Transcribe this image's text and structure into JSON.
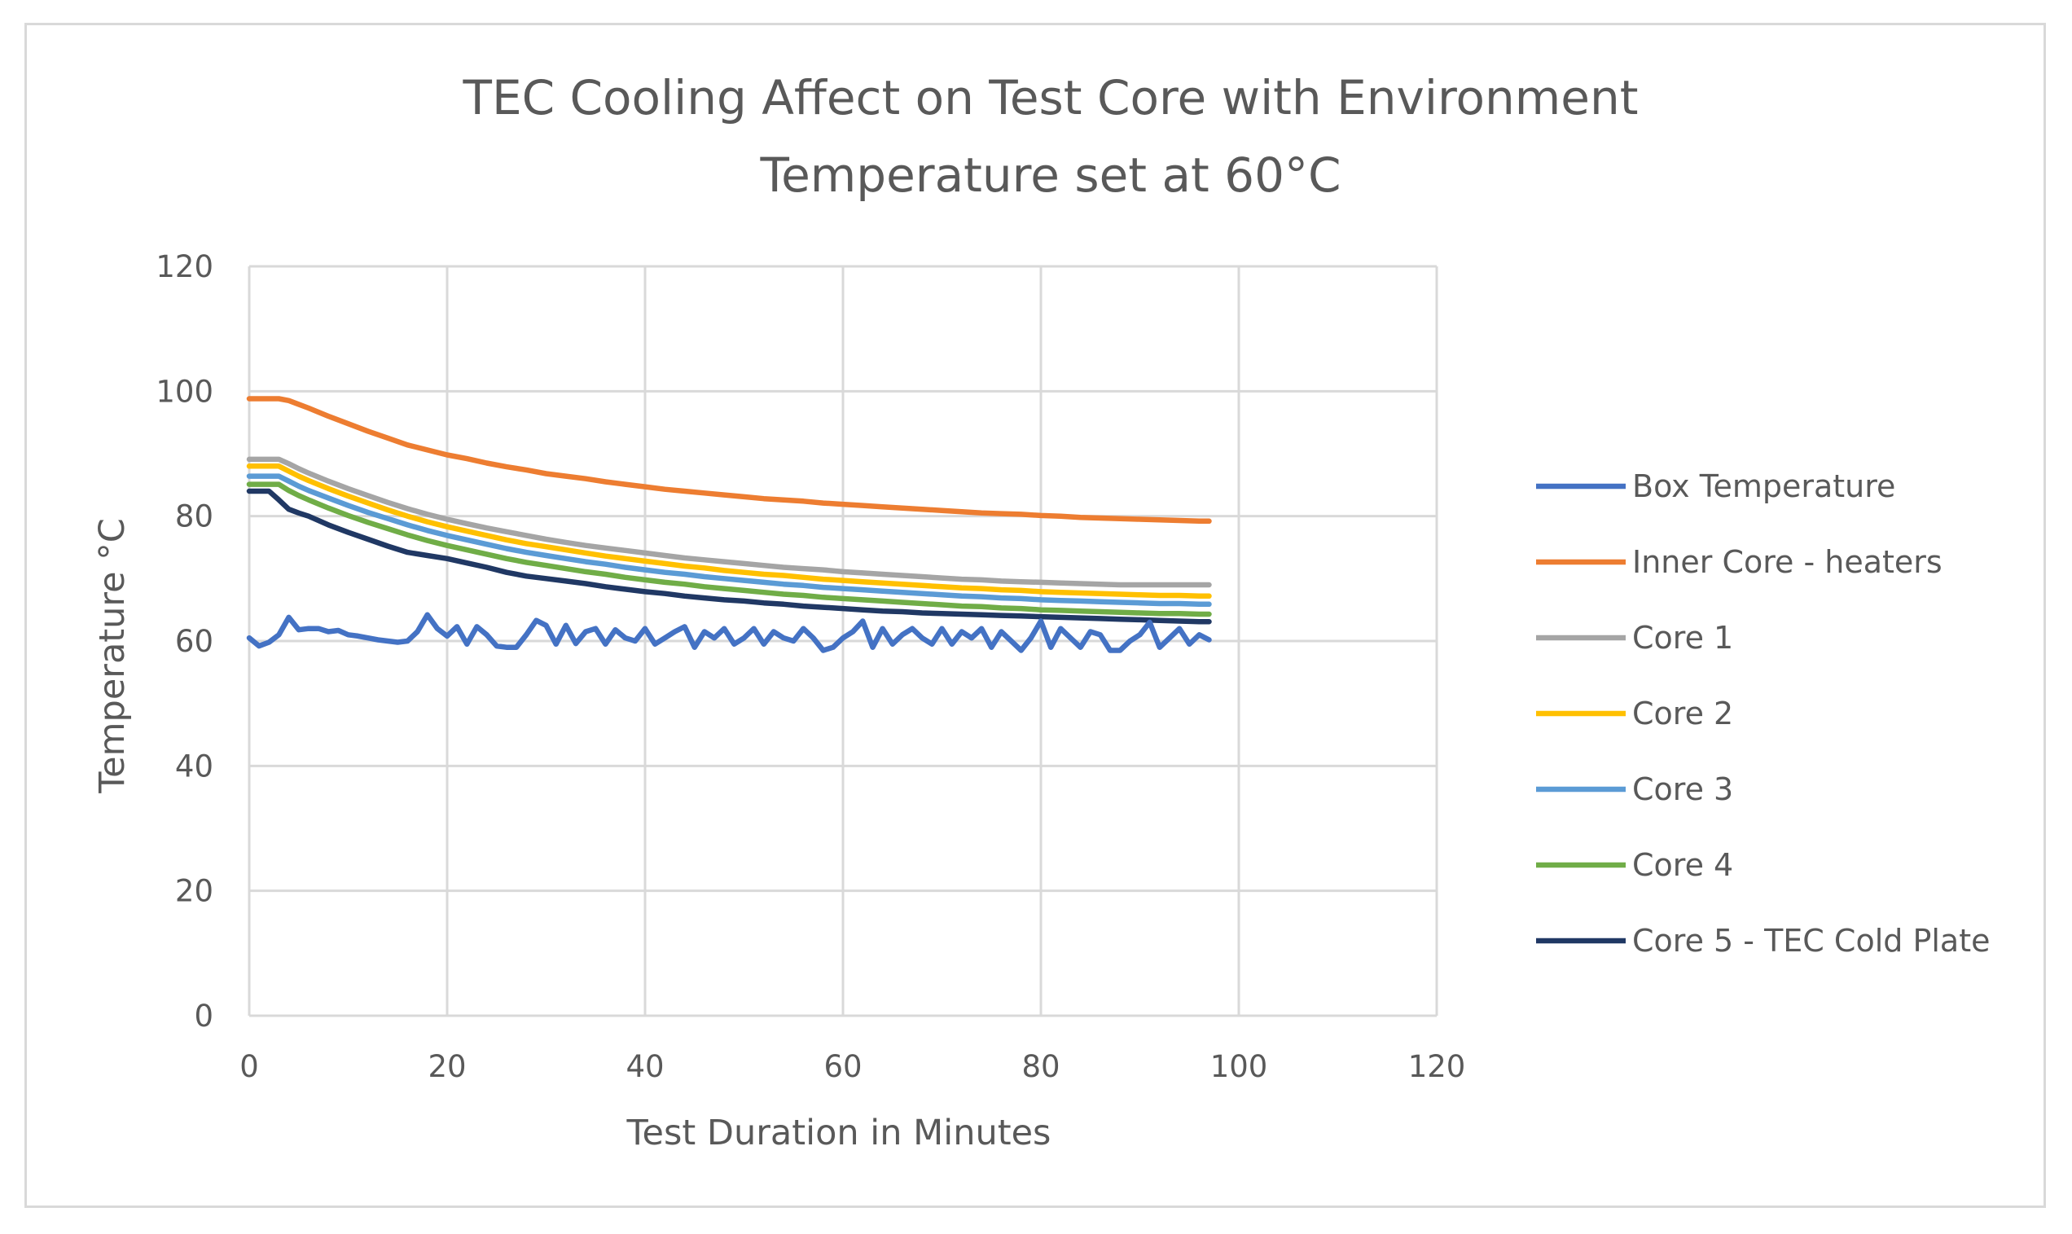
{
  "chart_data": {
    "type": "line",
    "title_lines": [
      "TEC Cooling Affect on Test Core with Environment",
      "Temperature set at 60°C"
    ],
    "xlabel": "Test Duration in Minutes",
    "ylabel": "Temperature °C",
    "xlim": [
      0,
      120
    ],
    "ylim": [
      0,
      120
    ],
    "xticks": [
      0,
      20,
      40,
      60,
      80,
      100,
      120
    ],
    "yticks": [
      0,
      20,
      40,
      60,
      80,
      100,
      120
    ],
    "grid": true,
    "legend_position": "right",
    "series": [
      {
        "name": "Box Temperature",
        "color": "#4472C4",
        "x": [
          0,
          1,
          2,
          3,
          4,
          5,
          6,
          7,
          8,
          9,
          10,
          11,
          12,
          13,
          14,
          15,
          16,
          17,
          18,
          19,
          20,
          21,
          22,
          23,
          24,
          25,
          26,
          27,
          28,
          29,
          30,
          31,
          32,
          33,
          34,
          35,
          36,
          37,
          38,
          39,
          40,
          41,
          42,
          43,
          44,
          45,
          46,
          47,
          48,
          49,
          50,
          51,
          52,
          53,
          54,
          55,
          56,
          57,
          58,
          59,
          60,
          61,
          62,
          63,
          64,
          65,
          66,
          67,
          68,
          69,
          70,
          71,
          72,
          73,
          74,
          75,
          76,
          77,
          78,
          79,
          80,
          81,
          82,
          83,
          84,
          85,
          86,
          87,
          88,
          89,
          90,
          91,
          92,
          93,
          94,
          95,
          96,
          97
        ],
        "y": [
          60.5,
          59.2,
          59.8,
          61.0,
          63.8,
          61.8,
          62.0,
          62.0,
          61.5,
          61.7,
          61.0,
          60.8,
          60.5,
          60.2,
          60.0,
          59.8,
          60.0,
          61.5,
          64.2,
          62.0,
          60.8,
          62.3,
          59.5,
          62.3,
          61.0,
          59.2,
          59.0,
          59.0,
          61.0,
          63.3,
          62.5,
          59.5,
          62.5,
          59.6,
          61.5,
          62.0,
          59.5,
          61.8,
          60.5,
          60.0,
          62.0,
          59.5,
          60.5,
          61.5,
          62.3,
          59.0,
          61.5,
          60.5,
          62.0,
          59.5,
          60.5,
          62.0,
          59.5,
          61.5,
          60.5,
          60.0,
          62.0,
          60.5,
          58.5,
          59.0,
          60.5,
          61.5,
          63.2,
          59.0,
          62.0,
          59.5,
          61.0,
          62.0,
          60.5,
          59.5,
          62.0,
          59.5,
          61.5,
          60.5,
          62.0,
          59.0,
          61.5,
          60.0,
          58.5,
          60.5,
          63.2,
          59.0,
          62.0,
          60.5,
          59.0,
          61.5,
          61.0,
          58.5,
          58.5,
          60.0,
          61.0,
          63.0,
          59.0,
          60.5,
          62.0,
          59.5,
          61.0,
          60.2
        ]
      },
      {
        "name": "Inner Core - heaters",
        "color": "#ED7D31",
        "x": [
          0,
          1,
          2,
          3,
          4,
          5,
          6,
          8,
          10,
          12,
          14,
          16,
          18,
          20,
          22,
          24,
          26,
          28,
          30,
          32,
          34,
          36,
          38,
          40,
          42,
          44,
          46,
          48,
          50,
          52,
          54,
          56,
          58,
          60,
          62,
          64,
          66,
          68,
          70,
          72,
          74,
          76,
          78,
          80,
          82,
          84,
          86,
          88,
          90,
          92,
          94,
          96,
          97
        ],
        "y": [
          98.8,
          98.8,
          98.8,
          98.8,
          98.5,
          97.9,
          97.3,
          96.0,
          94.8,
          93.6,
          92.5,
          91.4,
          90.6,
          89.8,
          89.2,
          88.5,
          87.9,
          87.4,
          86.8,
          86.4,
          86.0,
          85.5,
          85.1,
          84.7,
          84.3,
          84.0,
          83.7,
          83.4,
          83.1,
          82.8,
          82.6,
          82.4,
          82.1,
          81.9,
          81.7,
          81.5,
          81.3,
          81.1,
          80.9,
          80.7,
          80.5,
          80.4,
          80.3,
          80.1,
          80.0,
          79.8,
          79.7,
          79.6,
          79.5,
          79.4,
          79.3,
          79.2,
          79.2
        ]
      },
      {
        "name": "Core 1",
        "color": "#A5A5A5",
        "x": [
          0,
          1,
          2,
          3,
          4,
          5,
          6,
          8,
          10,
          12,
          14,
          16,
          18,
          20,
          22,
          24,
          26,
          28,
          30,
          32,
          34,
          36,
          38,
          40,
          42,
          44,
          46,
          48,
          50,
          52,
          54,
          56,
          58,
          60,
          62,
          64,
          66,
          68,
          70,
          72,
          74,
          76,
          78,
          80,
          82,
          84,
          86,
          88,
          90,
          92,
          94,
          96,
          97
        ],
        "y": [
          89.1,
          89.1,
          89.1,
          89.1,
          88.4,
          87.6,
          86.9,
          85.6,
          84.4,
          83.3,
          82.2,
          81.2,
          80.3,
          79.5,
          78.8,
          78.1,
          77.5,
          76.9,
          76.3,
          75.8,
          75.3,
          74.9,
          74.5,
          74.1,
          73.7,
          73.3,
          73.0,
          72.7,
          72.4,
          72.1,
          71.8,
          71.6,
          71.4,
          71.1,
          70.9,
          70.7,
          70.5,
          70.3,
          70.1,
          69.9,
          69.8,
          69.6,
          69.5,
          69.4,
          69.3,
          69.2,
          69.1,
          69.0,
          69.0,
          69.0,
          69.0,
          69.0,
          69.0
        ]
      },
      {
        "name": "Core 2",
        "color": "#FFC000",
        "x": [
          0,
          1,
          2,
          3,
          4,
          5,
          6,
          8,
          10,
          12,
          14,
          16,
          18,
          20,
          22,
          24,
          26,
          28,
          30,
          32,
          34,
          36,
          38,
          40,
          42,
          44,
          46,
          48,
          50,
          52,
          54,
          56,
          58,
          60,
          62,
          64,
          66,
          68,
          70,
          72,
          74,
          76,
          78,
          80,
          82,
          84,
          86,
          88,
          90,
          92,
          94,
          96,
          97
        ],
        "y": [
          88.0,
          88.0,
          88.0,
          88.0,
          87.2,
          86.4,
          85.7,
          84.4,
          83.2,
          82.1,
          81.0,
          80.0,
          79.1,
          78.3,
          77.6,
          76.9,
          76.2,
          75.6,
          75.1,
          74.6,
          74.1,
          73.6,
          73.2,
          72.8,
          72.4,
          72.0,
          71.7,
          71.3,
          71.0,
          70.7,
          70.5,
          70.2,
          69.9,
          69.7,
          69.5,
          69.3,
          69.1,
          68.9,
          68.7,
          68.5,
          68.4,
          68.2,
          68.1,
          67.9,
          67.8,
          67.7,
          67.6,
          67.5,
          67.4,
          67.3,
          67.3,
          67.2,
          67.2
        ]
      },
      {
        "name": "Core 3",
        "color": "#5B9BD5",
        "x": [
          0,
          1,
          2,
          3,
          4,
          5,
          6,
          8,
          10,
          12,
          14,
          16,
          18,
          20,
          22,
          24,
          26,
          28,
          30,
          32,
          34,
          36,
          38,
          40,
          42,
          44,
          46,
          48,
          50,
          52,
          54,
          56,
          58,
          60,
          62,
          64,
          66,
          68,
          70,
          72,
          74,
          76,
          78,
          80,
          82,
          84,
          86,
          88,
          90,
          92,
          94,
          96,
          97
        ],
        "y": [
          86.4,
          86.4,
          86.4,
          86.4,
          85.6,
          84.8,
          84.1,
          82.9,
          81.7,
          80.6,
          79.6,
          78.6,
          77.7,
          76.9,
          76.2,
          75.5,
          74.8,
          74.2,
          73.7,
          73.2,
          72.7,
          72.3,
          71.8,
          71.4,
          71.0,
          70.7,
          70.3,
          70.0,
          69.7,
          69.4,
          69.1,
          68.9,
          68.6,
          68.4,
          68.2,
          68.0,
          67.8,
          67.6,
          67.4,
          67.2,
          67.1,
          66.9,
          66.8,
          66.6,
          66.5,
          66.4,
          66.3,
          66.2,
          66.1,
          66.0,
          66.0,
          65.9,
          65.9
        ]
      },
      {
        "name": "Core 4",
        "color": "#70AD47",
        "x": [
          0,
          1,
          2,
          3,
          4,
          5,
          6,
          8,
          10,
          12,
          14,
          16,
          18,
          20,
          22,
          24,
          26,
          28,
          30,
          32,
          34,
          36,
          38,
          40,
          42,
          44,
          46,
          48,
          50,
          52,
          54,
          56,
          58,
          60,
          62,
          64,
          66,
          68,
          70,
          72,
          74,
          76,
          78,
          80,
          82,
          84,
          86,
          88,
          90,
          92,
          94,
          96,
          97
        ],
        "y": [
          85.1,
          85.1,
          85.1,
          85.1,
          84.1,
          83.3,
          82.6,
          81.3,
          80.1,
          79.0,
          78.0,
          77.0,
          76.1,
          75.3,
          74.6,
          73.9,
          73.2,
          72.6,
          72.1,
          71.6,
          71.1,
          70.7,
          70.2,
          69.8,
          69.4,
          69.1,
          68.7,
          68.4,
          68.1,
          67.8,
          67.5,
          67.3,
          67.0,
          66.8,
          66.6,
          66.4,
          66.2,
          66.0,
          65.8,
          65.6,
          65.5,
          65.3,
          65.2,
          65.0,
          64.9,
          64.8,
          64.7,
          64.6,
          64.5,
          64.4,
          64.4,
          64.3,
          64.3
        ]
      },
      {
        "name": "Core 5 - TEC Cold Plate",
        "color": "#203864",
        "x": [
          0,
          1,
          2,
          3,
          4,
          5,
          6,
          8,
          10,
          12,
          14,
          16,
          18,
          20,
          22,
          24,
          26,
          28,
          30,
          32,
          34,
          36,
          38,
          40,
          42,
          44,
          46,
          48,
          50,
          52,
          54,
          56,
          58,
          60,
          62,
          64,
          66,
          68,
          70,
          72,
          74,
          76,
          78,
          80,
          82,
          84,
          86,
          88,
          90,
          92,
          94,
          96,
          97
        ],
        "y": [
          84.0,
          84.0,
          84.0,
          82.6,
          81.1,
          80.5,
          80.0,
          78.6,
          77.4,
          76.3,
          75.2,
          74.2,
          73.7,
          73.2,
          72.5,
          71.8,
          71.0,
          70.4,
          70.0,
          69.6,
          69.2,
          68.7,
          68.3,
          67.9,
          67.6,
          67.2,
          66.9,
          66.6,
          66.4,
          66.1,
          65.9,
          65.6,
          65.4,
          65.2,
          65.0,
          64.8,
          64.7,
          64.5,
          64.4,
          64.3,
          64.2,
          64.1,
          64.0,
          63.9,
          63.8,
          63.7,
          63.6,
          63.5,
          63.4,
          63.3,
          63.2,
          63.1,
          63.1
        ]
      }
    ]
  }
}
